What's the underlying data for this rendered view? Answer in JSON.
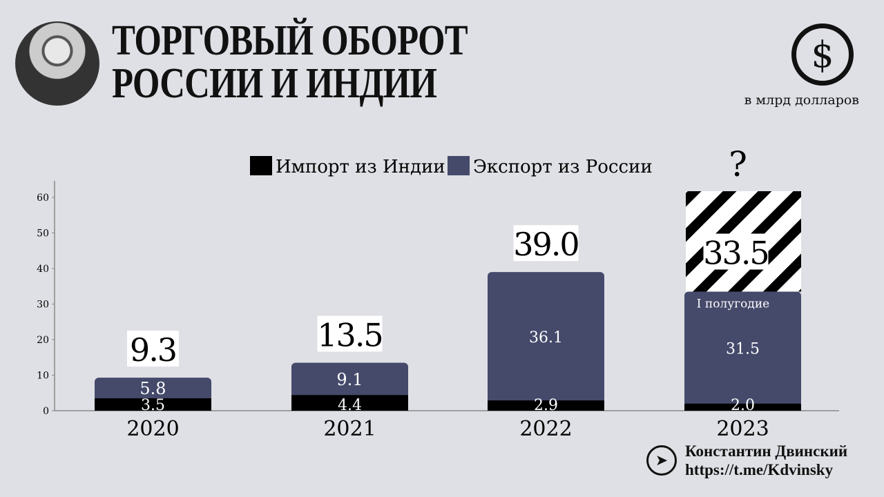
{
  "header": {
    "title": "ТОРГОВЫЙ ОБОРОТ\nРОССИИ И ИНДИИ",
    "unit": "в млрд долларов",
    "dollar_icon": "$"
  },
  "footer": {
    "author": "Константин Двинский",
    "link": "https://t.me/Kdvinsky"
  },
  "chart_data": {
    "type": "bar",
    "stacked": true,
    "categories": [
      "2020",
      "2021",
      "2022",
      "2023"
    ],
    "series": [
      {
        "name": "Импорт из Индии",
        "color": "#000000",
        "values": [
          3.5,
          4.4,
          2.9,
          2.0
        ]
      },
      {
        "name": "Экспорт из России",
        "color": "#454a6b",
        "values": [
          5.8,
          9.1,
          36.1,
          31.5
        ]
      }
    ],
    "totals": [
      "9.3",
      "13.5",
      "39.0",
      "33.5"
    ],
    "annotations": {
      "2023_note": "I полугодие",
      "2023_question": "?"
    },
    "yticks": [
      0,
      10,
      20,
      30,
      40,
      50,
      60
    ],
    "ylim": [
      0,
      60
    ],
    "legend": "top-center",
    "grid": false
  }
}
